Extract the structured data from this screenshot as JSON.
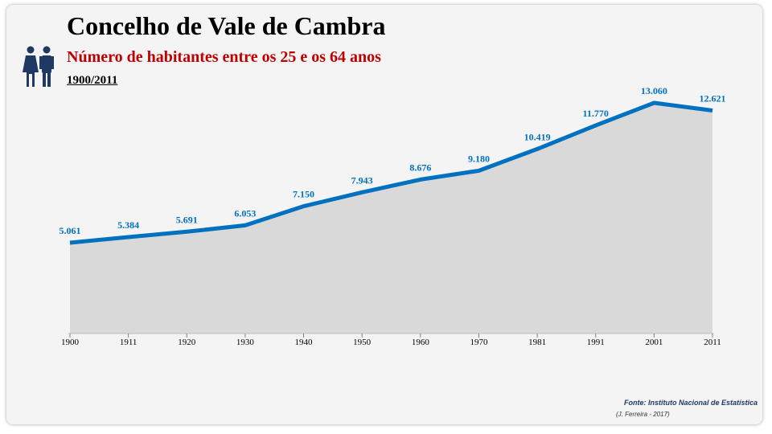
{
  "header": {
    "title": "Concelho de Vale de Cambra",
    "subtitle": "Número de habitantes entre os 25 e os 64 anos",
    "period": "1900/2011",
    "icon": "people-icon"
  },
  "footer": {
    "source": "Fonte: Instituto Nacional de Estatística",
    "author": "(J. Ferreira - 2017)"
  },
  "colors": {
    "line": "#0070c0",
    "area": "#d9d9d9",
    "label": "#0070c0",
    "subtitle": "#c00000"
  },
  "chart_data": {
    "type": "area",
    "title": "",
    "xlabel": "",
    "ylabel": "",
    "x": [
      "1900",
      "1911",
      "1920",
      "1930",
      "1940",
      "1950",
      "1960",
      "1970",
      "1981",
      "1991",
      "2001",
      "2011"
    ],
    "values": [
      5061,
      5384,
      5691,
      6053,
      7150,
      7943,
      8676,
      9180,
      10419,
      11770,
      13060,
      12621
    ],
    "labels": [
      "5.061",
      "5.384",
      "5.691",
      "6.053",
      "7.150",
      "7.943",
      "8.676",
      "9.180",
      "10.419",
      "11.770",
      "13.060",
      "12.621"
    ],
    "ylim": [
      0,
      14000
    ],
    "grid": false,
    "legend": "none"
  }
}
